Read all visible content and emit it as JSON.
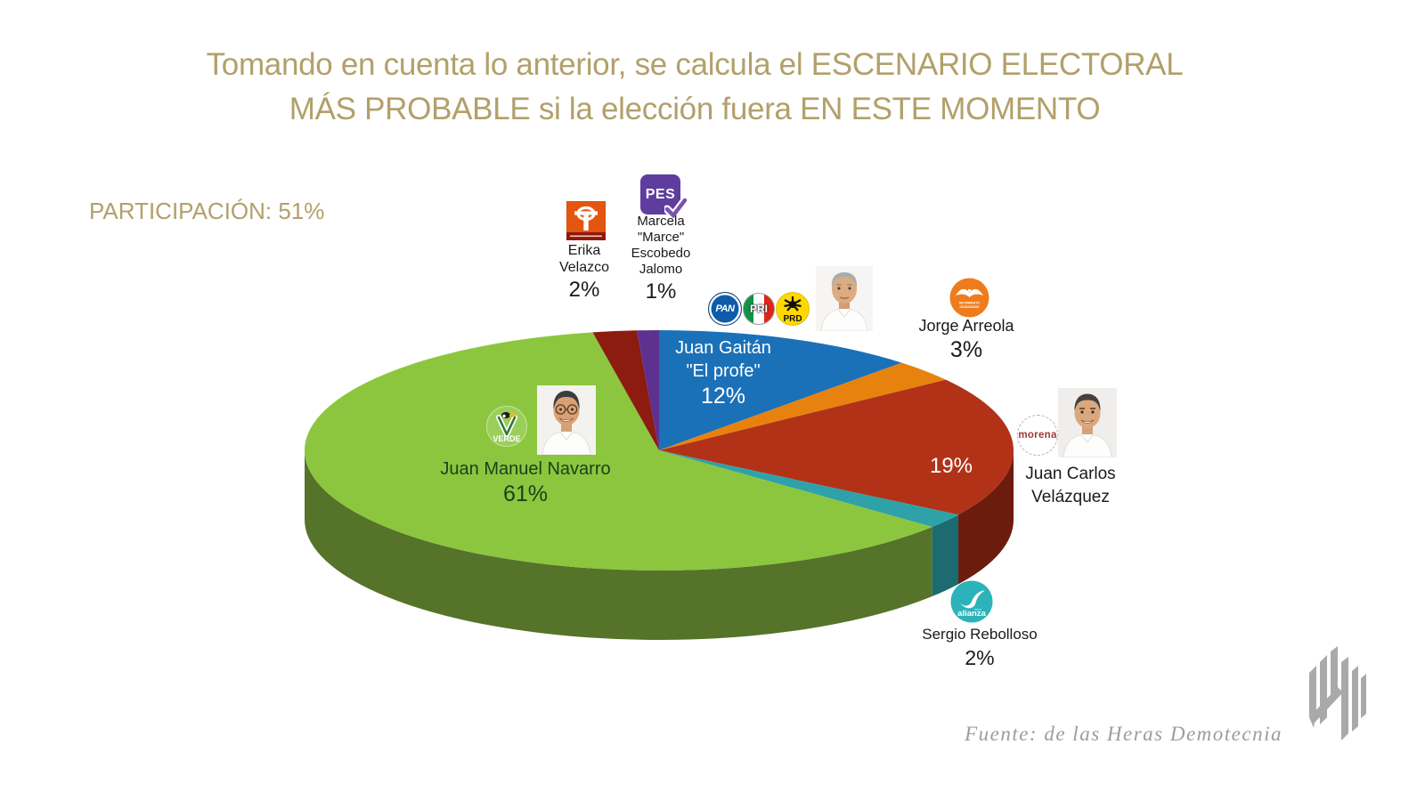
{
  "slide": {
    "title_line1": "Tomando en cuenta lo anterior, se calcula el ESCENARIO ELECTORAL",
    "title_line2": "MÁS PROBABLE si la elección fuera EN ESTE MOMENTO",
    "participation_label": "PARTICIPACIÓN: 51%",
    "source_credit": "Fuente: de las Heras Demotecnia",
    "accent_gold": "#B2A06A",
    "source_gray": "#9C9C9C"
  },
  "chart_data": {
    "type": "pie",
    "style": "3d",
    "title": "Escenario electoral más probable si la elección fuera en este momento",
    "participation": "51%",
    "unit": "%",
    "legend_position": "callouts-around-pie",
    "start_angle": "12-o-clock, clockwise",
    "slices": [
      {
        "candidate": "Juan Gaitán \"El profe\"",
        "party": "PAN-PRI-PRD",
        "value": 12,
        "pct": "12%",
        "color": "#1B71B8",
        "side_color": "#0E4E82",
        "label_color": "#FFFFFF"
      },
      {
        "candidate": "Jorge Arreola",
        "party": "Movimiento Ciudadano",
        "value": 3,
        "pct": "3%",
        "color": "#E8820E",
        "side_color": "#A85C08",
        "label_color": "#1A1A1A"
      },
      {
        "candidate": "Juan Carlos Velázquez",
        "party": "Morena",
        "value": 19,
        "pct": "19%",
        "color": "#B23218",
        "side_color": "#6B1C0D",
        "label_color": "#FFFFFF"
      },
      {
        "candidate": "Sergio Rebolloso",
        "party": "Nueva Alianza",
        "value": 2,
        "pct": "2%",
        "color": "#2EA2A8",
        "side_color": "#1C6B70",
        "label_color": "#1A1A1A"
      },
      {
        "candidate": "Juan Manuel Navarro",
        "party": "Partido Verde",
        "value": 61,
        "pct": "61%",
        "color": "#8CC63E",
        "side_color": "#55742A",
        "label_color": "#17421B"
      },
      {
        "candidate": "Erika Velazco",
        "party": "PT",
        "value": 2,
        "pct": "2%",
        "color": "#8C1B10",
        "side_color": "#54100A",
        "label_color": "#1A1A1A"
      },
      {
        "candidate": "Marcela \"Marce\" Escobedo Jalomo",
        "party": "PES",
        "value": 1,
        "pct": "1%",
        "color": "#5C3190",
        "side_color": "#3A1F5E",
        "label_color": "#1A1A1A"
      }
    ]
  },
  "callouts": {
    "velazco": {
      "line1": "Erika",
      "line2": "Velazco"
    },
    "escobedo": {
      "line1": "Marcela",
      "line2": "\"Marce\"",
      "line3": "Escobedo",
      "line4": "Jalomo"
    },
    "gaitan": {
      "line1": "Juan Gaitán",
      "line2": "\"El profe\""
    },
    "arreola": {
      "line1": "Jorge Arreola"
    },
    "velazquez": {
      "line1": "Juan Carlos",
      "line2": "Velázquez"
    },
    "navarro": {
      "line1": "Juan Manuel Navarro"
    },
    "rebolloso": {
      "line1": "Sergio Rebolloso"
    }
  },
  "logos": {
    "pes_text": "PES",
    "pan_text": "PAN",
    "pri_text": "PRI",
    "prd_text": "PRD",
    "mc_line1": "MOVIMIENTO",
    "mc_line2": "CIUDADANO",
    "morena_text": "morena",
    "verde_text": "VERDE",
    "alianza_text": "alianza",
    "alianza_small": "nueva"
  }
}
